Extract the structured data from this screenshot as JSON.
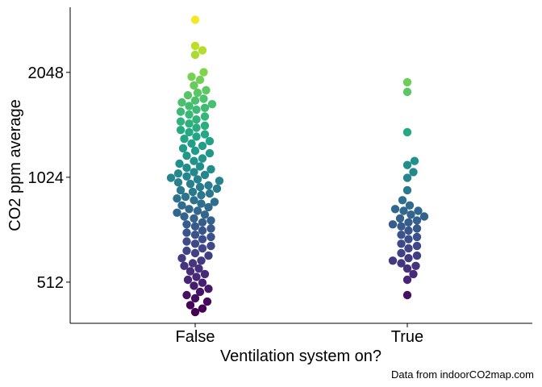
{
  "chart_data": {
    "type": "scatter",
    "subtype": "beeswarm",
    "xlabel": "Ventilation system on?",
    "ylabel": "CO2 ppm average",
    "caption": "Data from indoorCO2map.com",
    "categories": [
      "False",
      "True"
    ],
    "y_scale": "log2",
    "y_ticks": [
      512,
      1024,
      2048
    ],
    "y_tick_labels": [
      "512",
      "1024",
      "2048"
    ],
    "ylim": [
      390,
      3150
    ],
    "grid": false,
    "color_scale": "viridis",
    "series": [
      {
        "category": "False",
        "values": [
          2900,
          2440,
          2370,
          2300,
          2050,
          1990,
          1950,
          1880,
          1820,
          1790,
          1760,
          1720,
          1700,
          1680,
          1660,
          1640,
          1620,
          1600,
          1580,
          1550,
          1530,
          1500,
          1480,
          1460,
          1440,
          1420,
          1400,
          1380,
          1360,
          1340,
          1320,
          1300,
          1280,
          1260,
          1240,
          1220,
          1200,
          1180,
          1160,
          1140,
          1120,
          1100,
          1090,
          1080,
          1060,
          1050,
          1040,
          1030,
          1020,
          1010,
          1000,
          990,
          980,
          970,
          960,
          950,
          940,
          930,
          920,
          910,
          900,
          890,
          880,
          870,
          860,
          850,
          840,
          830,
          820,
          810,
          800,
          790,
          780,
          770,
          760,
          750,
          740,
          730,
          720,
          710,
          700,
          690,
          680,
          670,
          660,
          650,
          640,
          630,
          620,
          610,
          600,
          590,
          580,
          570,
          560,
          550,
          540,
          530,
          520,
          510,
          500,
          490,
          480,
          470,
          460,
          450,
          440,
          430,
          420
        ]
      },
      {
        "category": "True",
        "values": [
          1920,
          1800,
          1380,
          1140,
          1110,
          1060,
          1020,
          940,
          880,
          850,
          830,
          820,
          820,
          800,
          790,
          780,
          770,
          760,
          750,
          740,
          730,
          720,
          700,
          690,
          680,
          660,
          650,
          640,
          620,
          610,
          600,
          590,
          580,
          570,
          560,
          540,
          520,
          470
        ]
      }
    ]
  }
}
